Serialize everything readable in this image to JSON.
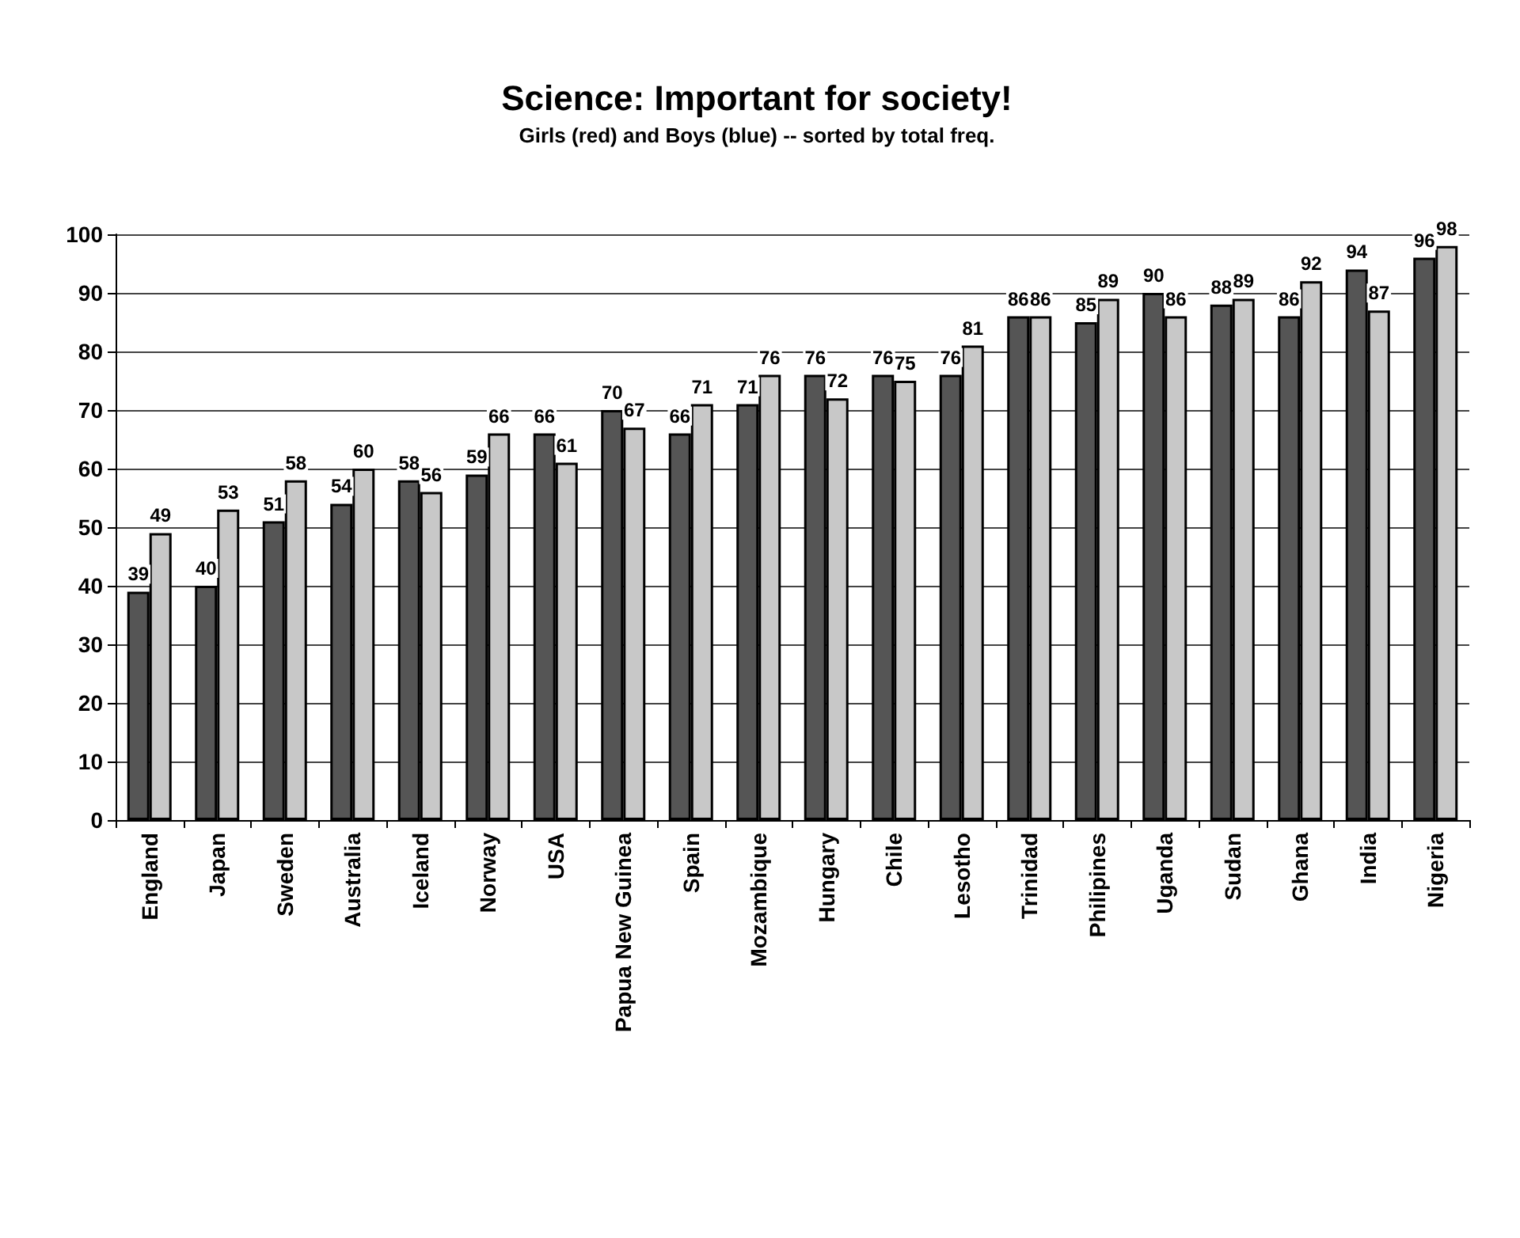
{
  "chart_data": {
    "type": "bar",
    "title": "Science: Important for society!",
    "subtitle": "Girls (red) and Boys (blue) -- sorted by total freq.",
    "categories": [
      "England",
      "Japan",
      "Sweden",
      "Australia",
      "Iceland",
      "Norway",
      "USA",
      "Papua New Guinea",
      "Spain",
      "Mozambique",
      "Hungary",
      "Chile",
      "Lesotho",
      "Trinidad",
      "Philipines",
      "Uganda",
      "Sudan",
      "Ghana",
      "India",
      "Nigeria"
    ],
    "series": [
      {
        "color": "#555555",
        "values": [
          39,
          40,
          51,
          54,
          58,
          59,
          66,
          70,
          66,
          71,
          76,
          76,
          76,
          86,
          85,
          90,
          88,
          86,
          94,
          96
        ]
      },
      {
        "color": "#c8c8c8",
        "values": [
          49,
          53,
          58,
          60,
          56,
          66,
          61,
          67,
          71,
          76,
          72,
          75,
          81,
          86,
          89,
          86,
          89,
          92,
          87,
          98
        ]
      }
    ],
    "ylim": [
      0,
      100
    ],
    "yticks": [
      0,
      10,
      20,
      30,
      40,
      50,
      60,
      70,
      80,
      90,
      100
    ],
    "grid": true,
    "data_labels": true
  }
}
